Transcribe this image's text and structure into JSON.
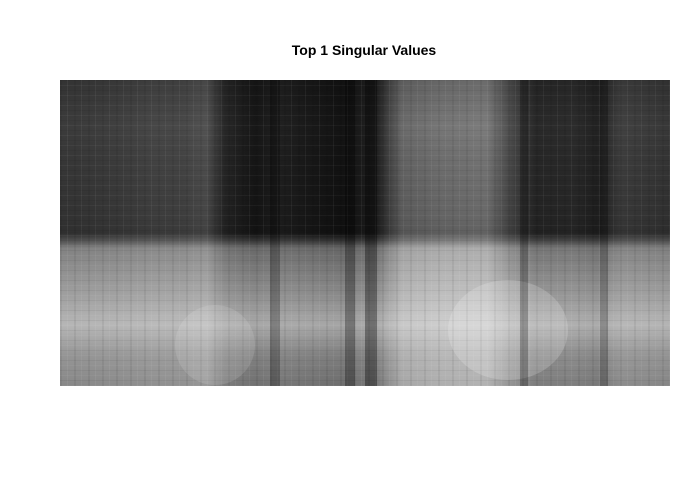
{
  "figure": {
    "title": "Top 1 Singular Values"
  },
  "image": {
    "colormap": "grayscale",
    "description_rows": [
      0.22,
      0.22,
      0.22,
      0.22,
      0.22,
      0.22,
      0.72,
      0.72,
      0.72,
      0.72
    ],
    "column_profile": [
      0.42,
      0.42,
      0.48,
      0.6,
      0.58,
      0.66,
      0.3,
      0.22,
      0.26,
      0.18,
      0.12,
      0.24,
      0.86,
      0.88,
      0.92,
      0.6,
      0.3,
      0.34,
      0.28,
      0.52,
      0.5
    ]
  }
}
